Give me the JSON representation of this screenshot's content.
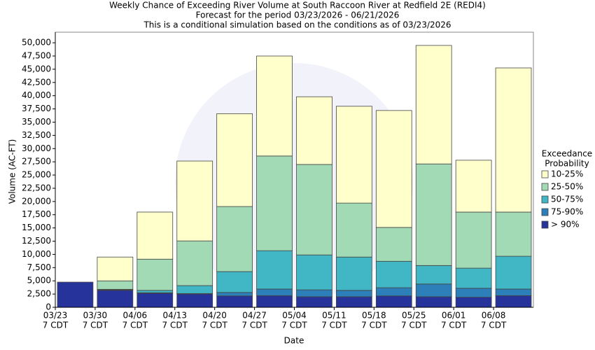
{
  "chart_data": {
    "type": "stacked_bar",
    "title": [
      "Weekly Chance of Exceeding River Volume at South Raccoon River at Redfield 2E (REDI4)",
      "Forecast for the period 03/23/2026 - 06/21/2026",
      "This is a conditional simulation based on the conditions as of 03/23/2026"
    ],
    "x_label": "Date",
    "y_label": "Volume (AC-FT)",
    "categories": [
      "03/23",
      "03/30",
      "04/06",
      "04/13",
      "04/20",
      "04/27",
      "05/04",
      "05/11",
      "05/18",
      "05/25",
      "06/01",
      "06/08"
    ],
    "category_suffix": "7 CDT",
    "legend_title": [
      "Exceedance",
      "Probability"
    ],
    "series": [
      {
        "name": "> 90%",
        "color": "#26339a",
        "values": [
          4760,
          3200,
          2650,
          2500,
          2150,
          2200,
          2000,
          2000,
          2150,
          2000,
          1900,
          2200
        ]
      },
      {
        "name": "75-90%",
        "color": "#2c7fb8",
        "values": [
          0,
          100,
          100,
          100,
          650,
          1250,
          1300,
          1200,
          1550,
          2400,
          1700,
          1250
        ]
      },
      {
        "name": "50-75%",
        "color": "#41b6c4",
        "values": [
          0,
          100,
          450,
          1500,
          3950,
          7250,
          6600,
          6300,
          5000,
          3500,
          3800,
          6200
        ]
      },
      {
        "name": "25-50%",
        "color": "#a1dab4",
        "values": [
          0,
          1600,
          5900,
          8450,
          12300,
          17900,
          17100,
          10200,
          6400,
          19200,
          10600,
          8350
        ]
      },
      {
        "name": "10-25%",
        "color": "#ffffcc",
        "values": [
          0,
          4500,
          8900,
          15100,
          17550,
          18900,
          12800,
          18300,
          22100,
          22400,
          9800,
          27250
        ]
      }
    ],
    "ylim": [
      0,
      52000
    ],
    "yticks": [
      0,
      {
        "value": 2500,
        "label": "2,500"
      },
      {
        "value": 5000,
        "label": "5,000"
      },
      {
        "value": 7500,
        "label": "7,500"
      },
      {
        "value": 10000,
        "label": "10,000"
      },
      {
        "value": 12500,
        "label": "12,500"
      },
      {
        "value": 15000,
        "label": "15,000"
      },
      {
        "value": 17500,
        "label": "17,500"
      },
      {
        "value": 20000,
        "label": "20,000"
      },
      {
        "value": 22500,
        "label": "22,500"
      },
      {
        "value": 25000,
        "label": "25,000"
      },
      {
        "value": 27500,
        "label": "27,500"
      },
      {
        "value": 30000,
        "label": "30,000"
      },
      {
        "value": 32500,
        "label": "32,500"
      },
      {
        "value": 35000,
        "label": "35,000"
      },
      {
        "value": 37500,
        "label": "37,500"
      },
      {
        "value": 40000,
        "label": "40,000"
      },
      {
        "value": 42500,
        "label": "42,500"
      },
      {
        "value": 45000,
        "label": "45,000"
      },
      {
        "value": 47500,
        "label": "47,500"
      },
      {
        "value": 50000,
        "label": "50,000"
      }
    ],
    "grid": false
  }
}
